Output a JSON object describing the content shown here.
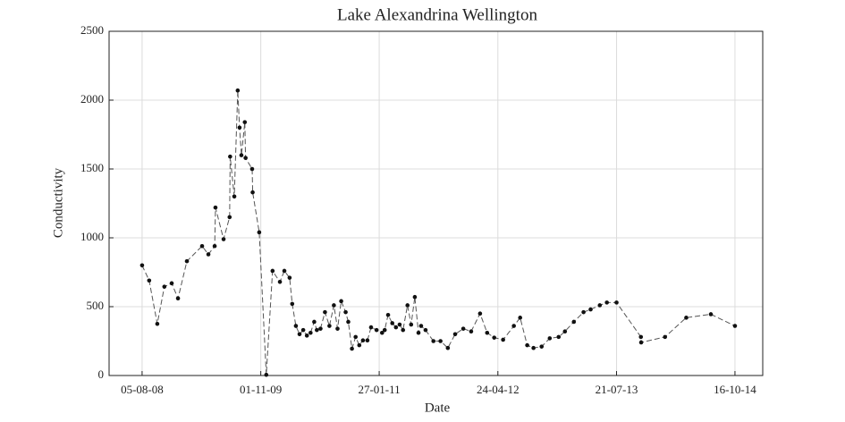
{
  "chart_data": {
    "type": "line",
    "title": "Lake Alexandrina Wellington",
    "x_label": "Date",
    "y_label": "Conductivity",
    "x": [
      "05-08-08",
      "01-09-08",
      "02-10-08",
      "29-10-08",
      "26-11-08",
      "20-12-08",
      "23-01-09",
      "22-03-09",
      "15-04-09",
      "09-05-09",
      "12-05-09",
      "12-06-09",
      "05-07-09",
      "07-07-09",
      "23-07-09",
      "05-08-09",
      "12-08-09",
      "19-08-09",
      "01-09-09",
      "04-09-09",
      "29-09-09",
      "01-10-09",
      "26-10-09",
      "22-11-09",
      "16-12-09",
      "13-01-10",
      "30-01-10",
      "19-02-10",
      "01-03-10",
      "15-03-10",
      "29-03-10",
      "12-04-10",
      "26-04-10",
      "10-05-10",
      "24-05-10",
      "03-06-10",
      "17-06-10",
      "04-07-10",
      "21-07-10",
      "07-08-10",
      "21-08-10",
      "04-09-10",
      "21-09-10",
      "01-10-10",
      "15-10-10",
      "29-10-10",
      "12-11-10",
      "26-11-10",
      "13-12-10",
      "27-12-10",
      "17-01-11",
      "07-02-11",
      "17-02-11",
      "02-03-11",
      "18-03-11",
      "01-04-11",
      "15-04-11",
      "28-04-11",
      "15-05-11",
      "29-05-11",
      "12-06-11",
      "26-06-11",
      "06-07-11",
      "23-07-11",
      "22-08-11",
      "18-09-11",
      "16-10-11",
      "13-11-11",
      "14-12-11",
      "13-01-12",
      "16-02-12",
      "14-03-12",
      "10-04-12",
      "14-05-12",
      "24-06-12",
      "18-07-12",
      "14-08-12",
      "07-09-12",
      "08-10-12",
      "08-11-12",
      "12-12-12",
      "05-01-13",
      "08-02-13",
      "17-03-13",
      "13-04-13",
      "18-05-13",
      "14-06-13",
      "21-07-13",
      "22-10-13",
      "23-10-13",
      "22-01-14",
      "13-04-14",
      "16-07-14",
      "16-10-14"
    ],
    "values": [
      800,
      690,
      375,
      645,
      670,
      560,
      830,
      940,
      880,
      940,
      1220,
      990,
      1150,
      1590,
      1300,
      2070,
      1800,
      1600,
      1840,
      1580,
      1500,
      1330,
      1040,
      5,
      760,
      680,
      760,
      710,
      520,
      360,
      300,
      330,
      290,
      310,
      390,
      330,
      340,
      460,
      360,
      510,
      340,
      540,
      460,
      390,
      195,
      280,
      220,
      255,
      255,
      350,
      330,
      310,
      330,
      440,
      380,
      350,
      370,
      330,
      510,
      370,
      570,
      310,
      360,
      330,
      250,
      250,
      200,
      300,
      340,
      320,
      450,
      310,
      275,
      260,
      360,
      420,
      220,
      200,
      210,
      270,
      280,
      320,
      390,
      460,
      480,
      510,
      530,
      530,
      280,
      240,
      280,
      420,
      445,
      360
    ],
    "color": "#555555",
    "marker_color": "#111111",
    "xlim": [
      "01-04-08",
      "30-01-15"
    ],
    "xticks": [
      "05-08-08",
      "01-11-09",
      "27-01-11",
      "24-04-12",
      "21-07-13",
      "16-10-14"
    ],
    "ylim": [
      0,
      2500
    ],
    "yticks": [
      0,
      500,
      1000,
      1500,
      2000,
      2500
    ],
    "grid": true
  }
}
